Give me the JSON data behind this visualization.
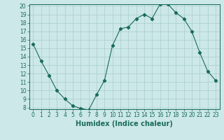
{
  "x": [
    0,
    1,
    2,
    3,
    4,
    5,
    6,
    7,
    8,
    9,
    10,
    11,
    12,
    13,
    14,
    15,
    16,
    17,
    18,
    19,
    20,
    21,
    22,
    23
  ],
  "y": [
    15.5,
    13.5,
    11.8,
    10.0,
    9.0,
    8.2,
    7.9,
    7.7,
    9.5,
    11.2,
    15.3,
    17.3,
    17.5,
    18.5,
    19.0,
    18.5,
    20.2,
    20.2,
    19.2,
    18.5,
    17.0,
    14.5,
    12.3,
    11.2
  ],
  "line_color": "#1a6b5a",
  "marker": "D",
  "marker_size": 2.2,
  "bg_color": "#cce8e8",
  "grid_color": "#aacccc",
  "xlabel": "Humidex (Indice chaleur)",
  "ylim": [
    8,
    20
  ],
  "xlim": [
    -0.5,
    23.5
  ],
  "yticks": [
    8,
    9,
    10,
    11,
    12,
    13,
    14,
    15,
    16,
    17,
    18,
    19,
    20
  ],
  "xticks": [
    0,
    1,
    2,
    3,
    4,
    5,
    6,
    7,
    8,
    9,
    10,
    11,
    12,
    13,
    14,
    15,
    16,
    17,
    18,
    19,
    20,
    21,
    22,
    23
  ],
  "tick_label_fontsize": 5.5,
  "xlabel_fontsize": 7.0,
  "axis_color": "#1a6b5a"
}
